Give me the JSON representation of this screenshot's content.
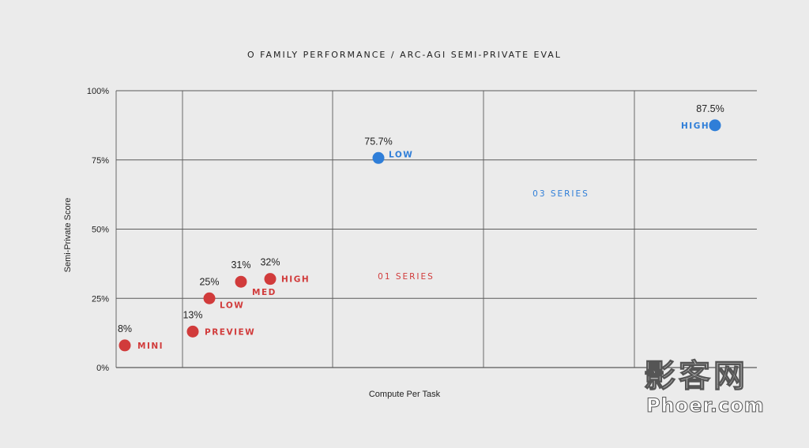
{
  "chart_data": {
    "type": "scatter",
    "title": "O FAMILY PERFORMANCE / ARC-AGI SEMI-PRIVATE EVAL",
    "xlabel": "Compute Per Task",
    "ylabel": "Semi-Private Score",
    "ylim": [
      0,
      100
    ],
    "yticks": [
      "0%",
      "25%",
      "50%",
      "75%",
      "100%"
    ],
    "grid": true,
    "series": [
      {
        "name": "01 SERIES",
        "color": "#d13b3b",
        "points": [
          {
            "label": "MINI",
            "value_label": "8%",
            "y": 8
          },
          {
            "label": "PREVIEW",
            "value_label": "13%",
            "y": 13
          },
          {
            "label": "LOW",
            "value_label": "25%",
            "y": 25
          },
          {
            "label": "MED",
            "value_label": "31%",
            "y": 31
          },
          {
            "label": "HIGH",
            "value_label": "32%",
            "y": 32
          }
        ]
      },
      {
        "name": "03 SERIES",
        "color": "#2f7ed8",
        "points": [
          {
            "label": "LOW",
            "value_label": "75.7%",
            "y": 75.7
          },
          {
            "label": "HIGH",
            "value_label": "87.5%",
            "y": 87.5
          }
        ]
      }
    ]
  },
  "watermark": {
    "line1": "影客网",
    "line2": "Phoer.com"
  }
}
